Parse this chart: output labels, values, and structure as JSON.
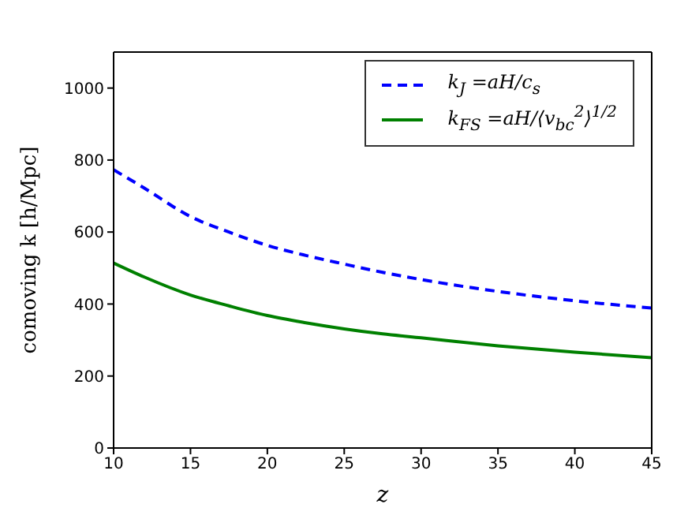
{
  "chart_data": {
    "type": "line",
    "xlabel": "z",
    "ylabel": "comoving k  [h/Mpc]",
    "x": [
      10,
      12,
      15,
      17.5,
      20,
      22.5,
      25,
      27.5,
      30,
      35,
      40,
      45
    ],
    "xlim": [
      10,
      45
    ],
    "xticks": [
      10,
      15,
      20,
      25,
      30,
      35,
      40,
      45
    ],
    "ylim": [
      0,
      1100
    ],
    "yticks": [
      0,
      200,
      400,
      600,
      800,
      1000
    ],
    "legend": "top right",
    "marker": "none",
    "series": [
      {
        "name": "k$_{J}$ =aH/c$_{s}$",
        "color": "#0000ff",
        "line_style": "dashed",
        "values": [
          773,
          722,
          643,
          600,
          563,
          535,
          511,
          488,
          468,
          435,
          409,
          389
        ]
      },
      {
        "name": "k$_{FS}$ =aH/⟨v$_{bc}$$^{2}$⟩$^{1/2}$",
        "color": "#008000",
        "line_style": "solid",
        "values": [
          514,
          475,
          425,
          395,
          368,
          348,
          331,
          317,
          306,
          284,
          266,
          251
        ]
      }
    ]
  }
}
